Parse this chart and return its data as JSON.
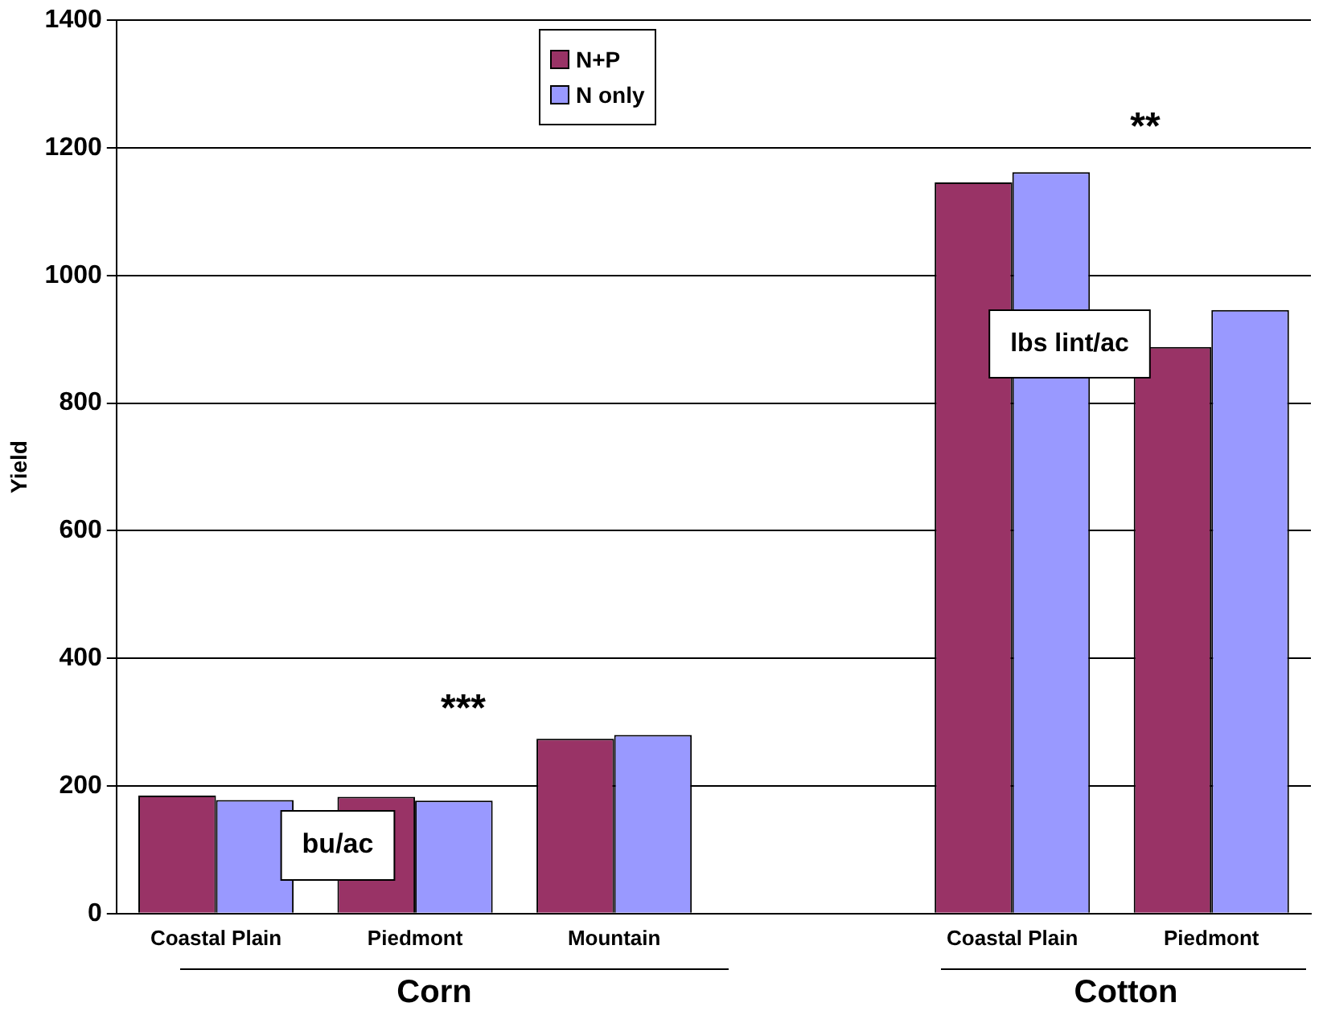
{
  "chart_data": {
    "type": "bar",
    "ylabel": "Yield",
    "categories": [
      "Coastal Plain",
      "Piedmont",
      "Mountain",
      null,
      "Coastal Plain",
      "Piedmont"
    ],
    "series": [
      {
        "name": "N+P",
        "color": "#993366",
        "values": [
          185,
          183,
          274,
          null,
          1146,
          888
        ]
      },
      {
        "name": "N only",
        "color": "#9999ff",
        "values": [
          178,
          177,
          280,
          null,
          1162,
          946
        ]
      }
    ],
    "ylim": [
      0,
      1400
    ],
    "yticks": [
      0,
      200,
      400,
      600,
      800,
      1000,
      1200,
      1400
    ],
    "grid": "y",
    "legend": "top",
    "annotations": [
      "***",
      "**",
      "bu/ac",
      "lbs lint/ac",
      "Corn",
      "Cotton"
    ]
  }
}
